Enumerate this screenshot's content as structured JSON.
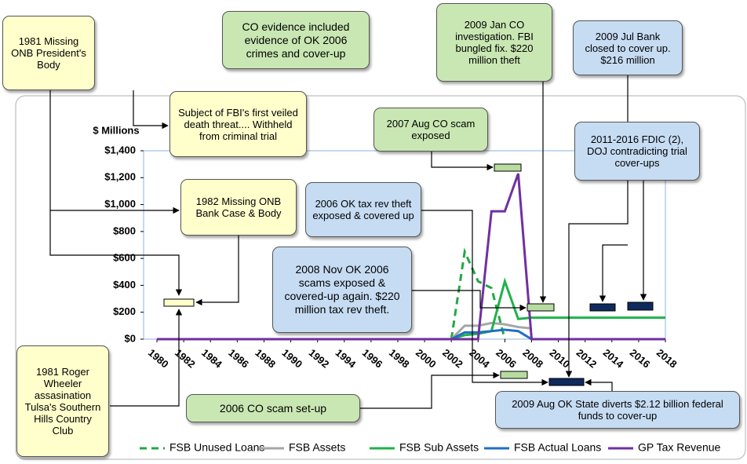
{
  "chart_data": {
    "type": "line",
    "ylabel": "$ Millions",
    "x": [
      1980,
      1981,
      1982,
      1983,
      1984,
      1985,
      1986,
      1987,
      1988,
      1989,
      1990,
      1991,
      1992,
      1993,
      1994,
      1995,
      1996,
      1997,
      1998,
      1999,
      2000,
      2001,
      2002,
      2003,
      2004,
      2005,
      2006,
      2007,
      2008,
      2009,
      2010,
      2011,
      2012,
      2013,
      2014,
      2015,
      2016,
      2017,
      2018
    ],
    "xlim": [
      1979,
      2018
    ],
    "xticks": [
      1980,
      1982,
      1984,
      1986,
      1988,
      1990,
      1992,
      1994,
      1996,
      1998,
      2000,
      2002,
      2004,
      2006,
      2008,
      2010,
      2012,
      2014,
      2016,
      2018
    ],
    "ylim": [
      0,
      1400
    ],
    "yticks": [
      {
        "value": 0,
        "label": "$0"
      },
      {
        "value": 200,
        "label": "$200"
      },
      {
        "value": 400,
        "label": "$400"
      },
      {
        "value": 600,
        "label": "$600"
      },
      {
        "value": 800,
        "label": "$800"
      },
      {
        "value": 1000,
        "label": "$1,000"
      },
      {
        "value": 1200,
        "label": "$1,200"
      },
      {
        "value": 1400,
        "label": "$1,400"
      }
    ],
    "series": [
      {
        "name": "FSB Unused Loans",
        "color": "#22a845",
        "line_style": "dashed",
        "values": [
          null,
          null,
          null,
          null,
          null,
          null,
          null,
          null,
          null,
          null,
          null,
          null,
          null,
          null,
          null,
          null,
          null,
          null,
          null,
          null,
          null,
          null,
          0,
          650,
          430,
          380,
          0,
          null,
          null,
          null,
          null,
          null,
          null,
          null,
          null,
          null,
          null,
          null,
          null
        ]
      },
      {
        "name": "FSB Assets",
        "color": "#a6a6a6",
        "line_style": "solid",
        "values": [
          null,
          null,
          null,
          null,
          null,
          null,
          null,
          null,
          null,
          null,
          null,
          null,
          null,
          null,
          null,
          null,
          null,
          null,
          null,
          null,
          null,
          null,
          0,
          100,
          100,
          120,
          110,
          90,
          80,
          null,
          null,
          null,
          null,
          null,
          null,
          null,
          null,
          null,
          null
        ]
      },
      {
        "name": "FSB Sub Assets",
        "color": "#1fb24a",
        "line_style": "solid",
        "values": [
          null,
          null,
          null,
          null,
          null,
          null,
          null,
          null,
          null,
          null,
          null,
          null,
          null,
          null,
          null,
          null,
          null,
          null,
          null,
          null,
          null,
          null,
          0,
          30,
          40,
          60,
          430,
          150,
          160,
          160,
          160,
          160,
          160,
          160,
          160,
          160,
          160,
          160,
          160
        ]
      },
      {
        "name": "FSB Actual Loans",
        "color": "#1f6fc4",
        "line_style": "solid",
        "values": [
          null,
          null,
          null,
          null,
          null,
          null,
          null,
          null,
          null,
          null,
          null,
          null,
          null,
          null,
          null,
          null,
          null,
          null,
          null,
          null,
          null,
          null,
          0,
          50,
          50,
          60,
          70,
          60,
          0,
          null,
          null,
          null,
          null,
          null,
          null,
          null,
          null,
          null,
          null
        ]
      },
      {
        "name": "GP Tax Revenue",
        "color": "#7030a0",
        "line_style": "solid",
        "values": [
          0,
          0,
          0,
          0,
          0,
          0,
          0,
          0,
          0,
          0,
          0,
          0,
          0,
          0,
          0,
          0,
          0,
          0,
          0,
          0,
          0,
          0,
          0,
          0,
          0,
          950,
          950,
          1230,
          0,
          0,
          0,
          0,
          0,
          0,
          0,
          0,
          0,
          0,
          0
        ]
      }
    ],
    "annotations": [
      "1981 Missing ONB President's Body",
      "Subject of FBI's first veiled death threat.... Withheld from criminal trial",
      "CO evidence included evidence of OK 2006 crimes and cover-up",
      "2009 Jan CO investigation. FBI bungled fix. $220 million theft",
      "2009 Jul Bank closed to cover up. $216 million",
      "2007 Aug CO scam exposed",
      "2011-2016 FDIC (2), DOJ contradicting trial cover-ups",
      "1982 Missing ONB Bank Case & Body",
      "2006 OK tax rev theft exposed & covered up",
      "2008 Nov OK 2006 scams exposed & covered-up again. $220 million tax rev theft.",
      "1981 Roger Wheeler assasination Tulsa's Southern Hills Country Club",
      "2006 CO scam set-up",
      "2009 Aug OK State diverts $2.12 billion federal funds to cover-up"
    ]
  }
}
